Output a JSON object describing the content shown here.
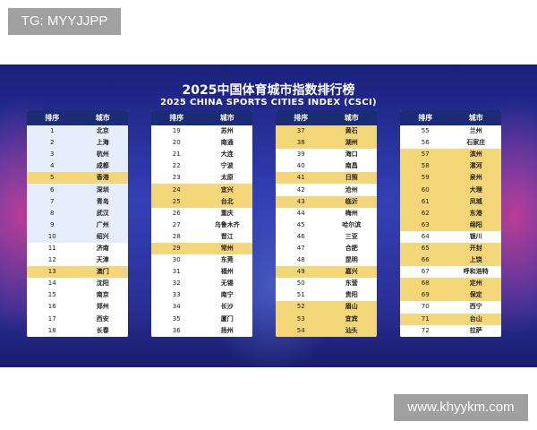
{
  "watermark_top": "TG: MYYJJPP",
  "watermark_bottom": "www.khyykm.com",
  "title_cn": "2025中国体育城市指数排行榜",
  "title_en": "2025 CHINA SPORTS CITIES INDEX (CSCI)",
  "headers": {
    "rank": "排序",
    "city": "城市"
  },
  "columns": [
    [
      {
        "rank": "1",
        "city": "北京",
        "style": "light"
      },
      {
        "rank": "2",
        "city": "上海",
        "style": "light"
      },
      {
        "rank": "3",
        "city": "杭州",
        "style": "light"
      },
      {
        "rank": "4",
        "city": "成都",
        "style": "light"
      },
      {
        "rank": "5",
        "city": "香港",
        "style": "gold"
      },
      {
        "rank": "6",
        "city": "深圳",
        "style": "light"
      },
      {
        "rank": "7",
        "city": "青岛",
        "style": "light"
      },
      {
        "rank": "8",
        "city": "武汉",
        "style": "light"
      },
      {
        "rank": "9",
        "city": "广州",
        "style": "light"
      },
      {
        "rank": "10",
        "city": "绍兴",
        "style": "light"
      },
      {
        "rank": "11",
        "city": "济南",
        "style": "white"
      },
      {
        "rank": "12",
        "city": "天津",
        "style": "white"
      },
      {
        "rank": "13",
        "city": "澳门",
        "style": "gold"
      },
      {
        "rank": "14",
        "city": "沈阳",
        "style": "white"
      },
      {
        "rank": "15",
        "city": "南京",
        "style": "white"
      },
      {
        "rank": "16",
        "city": "郑州",
        "style": "white"
      },
      {
        "rank": "17",
        "city": "西安",
        "style": "white"
      },
      {
        "rank": "18",
        "city": "长春",
        "style": "white"
      }
    ],
    [
      {
        "rank": "19",
        "city": "苏州",
        "style": "white"
      },
      {
        "rank": "20",
        "city": "南通",
        "style": "white"
      },
      {
        "rank": "21",
        "city": "大连",
        "style": "white"
      },
      {
        "rank": "22",
        "city": "宁波",
        "style": "white"
      },
      {
        "rank": "23",
        "city": "太原",
        "style": "white"
      },
      {
        "rank": "24",
        "city": "宜兴",
        "style": "gold"
      },
      {
        "rank": "25",
        "city": "台北",
        "style": "gold"
      },
      {
        "rank": "26",
        "city": "重庆",
        "style": "white"
      },
      {
        "rank": "27",
        "city": "乌鲁木齐",
        "style": "white"
      },
      {
        "rank": "28",
        "city": "晋江",
        "style": "white"
      },
      {
        "rank": "29",
        "city": "常州",
        "style": "gold"
      },
      {
        "rank": "30",
        "city": "东莞",
        "style": "white"
      },
      {
        "rank": "31",
        "city": "福州",
        "style": "white"
      },
      {
        "rank": "32",
        "city": "无锡",
        "style": "white"
      },
      {
        "rank": "33",
        "city": "南宁",
        "style": "white"
      },
      {
        "rank": "34",
        "city": "长沙",
        "style": "white"
      },
      {
        "rank": "35",
        "city": "厦门",
        "style": "white"
      },
      {
        "rank": "36",
        "city": "扬州",
        "style": "white"
      }
    ],
    [
      {
        "rank": "37",
        "city": "黄石",
        "style": "gold"
      },
      {
        "rank": "38",
        "city": "湖州",
        "style": "gold"
      },
      {
        "rank": "39",
        "city": "海口",
        "style": "white"
      },
      {
        "rank": "40",
        "city": "南昌",
        "style": "white"
      },
      {
        "rank": "41",
        "city": "日照",
        "style": "gold"
      },
      {
        "rank": "42",
        "city": "沧州",
        "style": "white"
      },
      {
        "rank": "43",
        "city": "临沂",
        "style": "gold"
      },
      {
        "rank": "44",
        "city": "梅州",
        "style": "white"
      },
      {
        "rank": "45",
        "city": "哈尔滨",
        "style": "white"
      },
      {
        "rank": "46",
        "city": "三亚",
        "style": "white"
      },
      {
        "rank": "47",
        "city": "合肥",
        "style": "white"
      },
      {
        "rank": "48",
        "city": "昆明",
        "style": "white"
      },
      {
        "rank": "49",
        "city": "嘉兴",
        "style": "gold"
      },
      {
        "rank": "50",
        "city": "东营",
        "style": "white"
      },
      {
        "rank": "51",
        "city": "贵阳",
        "style": "white"
      },
      {
        "rank": "52",
        "city": "眉山",
        "style": "gold"
      },
      {
        "rank": "53",
        "city": "宜宾",
        "style": "gold"
      },
      {
        "rank": "54",
        "city": "汕头",
        "style": "gold"
      }
    ],
    [
      {
        "rank": "55",
        "city": "兰州",
        "style": "white"
      },
      {
        "rank": "56",
        "city": "石家庄",
        "style": "white"
      },
      {
        "rank": "57",
        "city": "滨州",
        "style": "gold"
      },
      {
        "rank": "58",
        "city": "漯河",
        "style": "gold"
      },
      {
        "rank": "59",
        "city": "泉州",
        "style": "gold"
      },
      {
        "rank": "60",
        "city": "大理",
        "style": "gold"
      },
      {
        "rank": "61",
        "city": "凤城",
        "style": "gold"
      },
      {
        "rank": "62",
        "city": "东港",
        "style": "gold"
      },
      {
        "rank": "63",
        "city": "绵阳",
        "style": "gold"
      },
      {
        "rank": "64",
        "city": "银川",
        "style": "white"
      },
      {
        "rank": "65",
        "city": "开封",
        "style": "gold"
      },
      {
        "rank": "66",
        "city": "上饶",
        "style": "gold"
      },
      {
        "rank": "67",
        "city": "呼和浩特",
        "style": "white"
      },
      {
        "rank": "68",
        "city": "定州",
        "style": "gold"
      },
      {
        "rank": "69",
        "city": "保定",
        "style": "gold"
      },
      {
        "rank": "70",
        "city": "西宁",
        "style": "white"
      },
      {
        "rank": "71",
        "city": "台山",
        "style": "gold"
      },
      {
        "rank": "72",
        "city": "拉萨",
        "style": "white"
      }
    ]
  ],
  "colors": {
    "gold_row": "#f3d677",
    "light_row": "#e7eefb",
    "header_bg": "#1c2c74",
    "banner_bg": "#2a2f96"
  }
}
